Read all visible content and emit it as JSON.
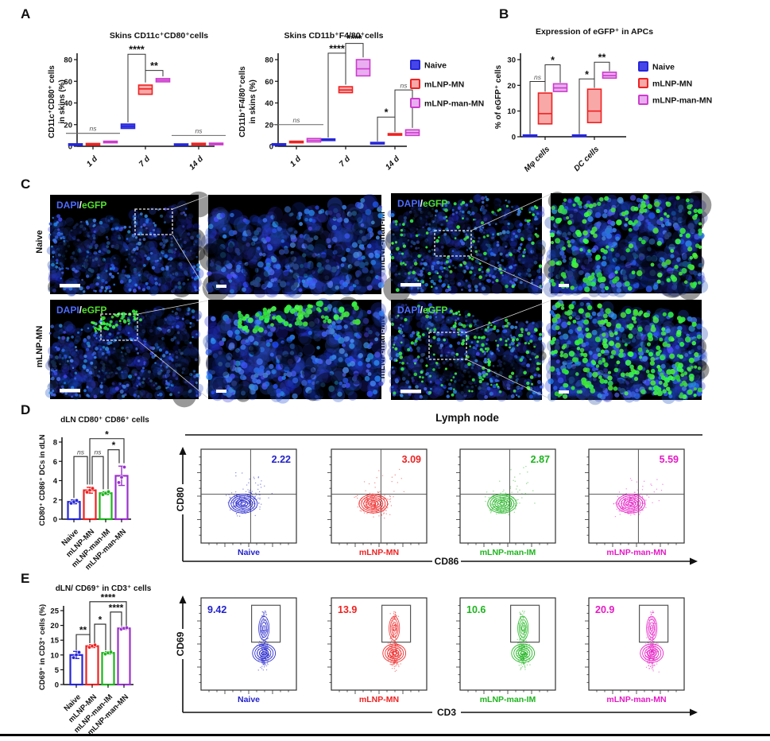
{
  "colors": {
    "blue": "#2626d9",
    "red": "#ee2222",
    "magenta": "#cc3dcc",
    "green": "#1db41d",
    "purple": "#9a33cc",
    "flow_blue": "#2222cc",
    "flow_magenta": "#e619c4",
    "blue_fill": "#4646e8",
    "red_fill": "#f9a8a8",
    "magenta_fill": "#e9aef0"
  },
  "legend": {
    "items": [
      {
        "label": "Naive",
        "stroke": "#2626d9",
        "fill": "#4646e8"
      },
      {
        "label": "mLNP-MN",
        "stroke": "#ee2222",
        "fill": "#f9a8a8"
      },
      {
        "label": "mLNP-man-MN",
        "stroke": "#cc3dcc",
        "fill": "#e9aef0"
      }
    ]
  },
  "panels": {
    "A": {
      "label": "A"
    },
    "B": {
      "label": "B"
    },
    "C": {
      "label": "C",
      "overlay": {
        "dapi": "DAPI",
        "slash": "/",
        "egfp": "eGFP"
      },
      "rows": [
        {
          "label": "Naive",
          "green": "none"
        },
        {
          "label": "mLNP-MN",
          "green": "edge"
        },
        {
          "label": "mLNP-man-IM",
          "green": "sparse"
        },
        {
          "label": "mLNP-man-MN",
          "green": "dense"
        }
      ]
    },
    "D": {
      "label": "D"
    },
    "E": {
      "label": "E"
    }
  },
  "chart_data": [
    {
      "id": "a_left",
      "type": "box",
      "title": "Skins CD11c⁺CD80⁺cells",
      "ylabel_lines": [
        "CD11c⁺CD80⁺ cells",
        "in skins (%)"
      ],
      "ylim": [
        0,
        80
      ],
      "yticks": [
        0,
        20,
        40,
        60,
        80
      ],
      "categories": [
        "1 d",
        "7 d",
        "14 d"
      ],
      "series": [
        {
          "name": "Naive",
          "color": "blue",
          "fill": "blue_fill",
          "boxes": [
            [
              1,
              1.6,
              2.3
            ],
            [
              16.5,
              18.5,
              20.5
            ],
            [
              1.1,
              1.6,
              2.2
            ]
          ]
        },
        {
          "name": "mLNP-MN",
          "color": "red",
          "fill": "red_fill",
          "boxes": [
            [
              1.5,
              2,
              2.6
            ],
            [
              48,
              53,
              56.5
            ],
            [
              1.5,
              2.1,
              2.8
            ]
          ]
        },
        {
          "name": "mLNP-man-MN",
          "color": "magenta",
          "fill": "magenta_fill",
          "boxes": [
            [
              3.4,
              4,
              4.7
            ],
            [
              59.5,
              61,
              62.5
            ],
            [
              1.7,
              2.2,
              2.9
            ]
          ]
        }
      ],
      "sig": [
        {
          "type": "overline",
          "cat": 0,
          "label": "ns",
          "y": 12
        },
        {
          "type": "bracket",
          "cat": 1,
          "g1": 0,
          "g2": 1,
          "label": "****",
          "y": 85,
          "d1": 22,
          "d2": 59
        },
        {
          "type": "bracket",
          "cat": 1,
          "g1": 1,
          "g2": 2,
          "label": "**",
          "y": 70,
          "d1": 59,
          "d2": 64.5
        },
        {
          "type": "overline",
          "cat": 2,
          "label": "ns",
          "y": 10
        }
      ]
    },
    {
      "id": "a_right",
      "type": "box",
      "title": "Skins CD11b⁺F4/80⁺cells",
      "ylabel_lines": [
        "CD11b⁺F4/80⁺cells",
        "in skins (%)"
      ],
      "ylim": [
        0,
        80
      ],
      "yticks": [
        0,
        20,
        40,
        60,
        80
      ],
      "categories": [
        "1 d",
        "7 d",
        "14 d"
      ],
      "series": [
        {
          "name": "Naive",
          "color": "blue",
          "fill": "blue_fill",
          "boxes": [
            [
              1,
              1.7,
              2.4
            ],
            [
              5.3,
              6,
              6.8
            ],
            [
              2.5,
              3,
              3.6
            ]
          ]
        },
        {
          "name": "mLNP-MN",
          "color": "red",
          "fill": "red_fill",
          "boxes": [
            [
              3.6,
              4.1,
              4.7
            ],
            [
              49.5,
              52,
              55
            ],
            [
              10.4,
              11,
              11.7
            ]
          ]
        },
        {
          "name": "mLNP-man-MN",
          "color": "magenta",
          "fill": "magenta_fill",
          "boxes": [
            [
              4,
              5.5,
              7.2
            ],
            [
              65,
              71.5,
              80
            ],
            [
              10,
              12.5,
              15.2
            ]
          ]
        }
      ],
      "sig": [
        {
          "type": "overline",
          "cat": 0,
          "label": "ns",
          "y": 20
        },
        {
          "type": "bracket",
          "cat": 1,
          "g1": 0,
          "g2": 1,
          "label": "****",
          "y": 86,
          "d1": 8,
          "d2": 57
        },
        {
          "type": "bracket",
          "cat": 1,
          "g1": 1,
          "g2": 2,
          "label": "****",
          "y": 95,
          "d1": 57,
          "d2": 82
        },
        {
          "type": "bracket",
          "cat": 2,
          "g1": 0,
          "g2": 1,
          "label": "*",
          "y": 27,
          "d1": 4.5,
          "d2": 13
        },
        {
          "type": "bracket",
          "cat": 2,
          "g1": 1,
          "g2": 2,
          "label": "ns",
          "y": 52,
          "d1": 13,
          "d2": 17
        }
      ]
    },
    {
      "id": "b",
      "type": "box",
      "title": "Expression of eGFP⁺ in APCs",
      "ylabel_lines": [
        "% of eGFP⁺ cells"
      ],
      "ylim": [
        0,
        30
      ],
      "yticks": [
        0,
        10,
        20,
        30
      ],
      "categories": [
        "Mφ cells",
        "DC cells"
      ],
      "series": [
        {
          "name": "Naive",
          "color": "blue",
          "fill": "blue_fill",
          "boxes": [
            [
              0.15,
              0.4,
              0.7
            ],
            [
              0.15,
              0.4,
              0.7
            ]
          ]
        },
        {
          "name": "mLNP-MN",
          "color": "red",
          "fill": "red_fill",
          "boxes": [
            [
              5,
              9,
              17
            ],
            [
              5.5,
              10,
              18.5
            ]
          ]
        },
        {
          "name": "mLNP-man-MN",
          "color": "magenta",
          "fill": "magenta_fill",
          "boxes": [
            [
              17.6,
              19,
              20.6
            ],
            [
              22.8,
              23.8,
              25.1
            ]
          ]
        }
      ],
      "sig": [
        {
          "type": "bracket",
          "cat": 0,
          "g1": 0,
          "g2": 1,
          "label": "ns",
          "y": 21.5,
          "d1": 1,
          "d2": 17.5
        },
        {
          "type": "bracket",
          "cat": 0,
          "g1": 1,
          "g2": 2,
          "label": "*",
          "y": 28,
          "d1": 17.5,
          "d2": 21
        },
        {
          "type": "bracket",
          "cat": 1,
          "g1": 0,
          "g2": 1,
          "label": "*",
          "y": 22.5,
          "d1": 1,
          "d2": 19
        },
        {
          "type": "bracket",
          "cat": 1,
          "g1": 1,
          "g2": 2,
          "label": "**",
          "y": 29,
          "d1": 19,
          "d2": 25.5
        }
      ]
    },
    {
      "id": "d_bar",
      "type": "bar",
      "title": "dLN CD80⁺ CD86⁺ cells",
      "ylabel": "CD80⁺ CD86⁺ DCs in dLN",
      "ylim": [
        0,
        8
      ],
      "yticks": [
        0,
        2,
        4,
        6,
        8
      ],
      "categories": [
        "Naive",
        "mLNP-MN",
        "mLNP-man-IM",
        "mLNP-man-MN"
      ],
      "colors": [
        "blue",
        "red",
        "green",
        "purple"
      ],
      "values": [
        1.8,
        3.0,
        2.7,
        4.5
      ],
      "errors": [
        0.2,
        0.3,
        0.15,
        1.0
      ],
      "dots": [
        [
          1.65,
          1.8,
          1.95
        ],
        [
          2.8,
          3.0,
          3.2
        ],
        [
          2.55,
          2.7,
          2.85
        ],
        [
          3.8,
          4.35,
          5.4
        ]
      ],
      "sig": [
        {
          "g1": 0,
          "g2": 1,
          "label": "ns",
          "y": 6.5,
          "d1": 2.2,
          "d2": 3.6,
          "o1": 0,
          "o2": -3
        },
        {
          "g1": 1,
          "g2": 2,
          "label": "ns",
          "y": 6.5,
          "d1": 3.6,
          "d2": 3.1,
          "o1": 3,
          "o2": -3
        },
        {
          "g1": 2,
          "g2": 3,
          "label": "*",
          "y": 7.2,
          "d1": 3.1,
          "d2": 5.8,
          "o1": 3,
          "o2": -3
        },
        {
          "g1": 1,
          "g2": 3,
          "label": "*",
          "y": 8.35,
          "d1": 3.6,
          "d2": 5.8,
          "o1": 0,
          "o2": 3
        }
      ]
    },
    {
      "id": "e_bar",
      "type": "bar",
      "title": "dLN/ CD69⁺ in CD3⁺ cells",
      "ylabel": "CD69⁺ in CD3⁺ cells (%)",
      "ylim": [
        0,
        25
      ],
      "yticks": [
        0,
        5,
        10,
        15,
        20,
        25
      ],
      "categories": [
        "Naive",
        "mLNP-MN",
        "mLNP-man-IM",
        "mLNP-man-MN"
      ],
      "colors": [
        "blue",
        "red",
        "green",
        "purple"
      ],
      "values": [
        10,
        13,
        10.7,
        19
      ],
      "errors": [
        1.2,
        0.5,
        0.4,
        0.35
      ],
      "dots": [
        [
          9.1,
          10,
          10.9
        ],
        [
          12.6,
          13,
          13.4
        ],
        [
          10.3,
          10.7,
          11
        ],
        [
          18.7,
          19,
          19.2
        ]
      ],
      "sig": [
        {
          "g1": 0,
          "g2": 1,
          "label": "**",
          "y": 16.9,
          "d1": 11.6,
          "d2": 14.0,
          "o1": 0,
          "o2": -3
        },
        {
          "g1": 1,
          "g2": 2,
          "label": "*",
          "y": 20.4,
          "d1": 14.0,
          "d2": 11.6,
          "o1": 3,
          "o2": -3
        },
        {
          "g1": 2,
          "g2": 3,
          "label": "****",
          "y": 24.5,
          "d1": 11.6,
          "d2": 19.8,
          "o1": 3,
          "o2": -3
        },
        {
          "g1": 1,
          "g2": 3,
          "label": "****",
          "y": 28,
          "d1": 14.0,
          "d2": 19.8,
          "o1": -3,
          "o2": 3
        }
      ]
    },
    {
      "id": "d_flow",
      "type": "flow",
      "header": "Lymph node",
      "xlabel": "CD86",
      "ylabel": "CD80",
      "gate": "quadrant",
      "plots": [
        {
          "label": "Naive",
          "value": "2.22",
          "color": "flow_blue"
        },
        {
          "label": "mLNP-MN",
          "value": "3.09",
          "color": "red"
        },
        {
          "label": "mLNP-man-IM",
          "value": "2.87",
          "color": "green"
        },
        {
          "label": "mLNP-man-MN",
          "value": "5.59",
          "color": "flow_magenta"
        }
      ]
    },
    {
      "id": "e_flow",
      "type": "flow",
      "xlabel": "CD3",
      "ylabel": "CD69",
      "gate": "rect",
      "plots": [
        {
          "label": "Naive",
          "value": "9.42",
          "color": "flow_blue"
        },
        {
          "label": "mLNP-MN",
          "value": "13.9",
          "color": "red"
        },
        {
          "label": "mLNP-man-IM",
          "value": "10.6",
          "color": "green"
        },
        {
          "label": "mLNP-man-MN",
          "value": "20.9",
          "color": "flow_magenta"
        }
      ]
    }
  ]
}
